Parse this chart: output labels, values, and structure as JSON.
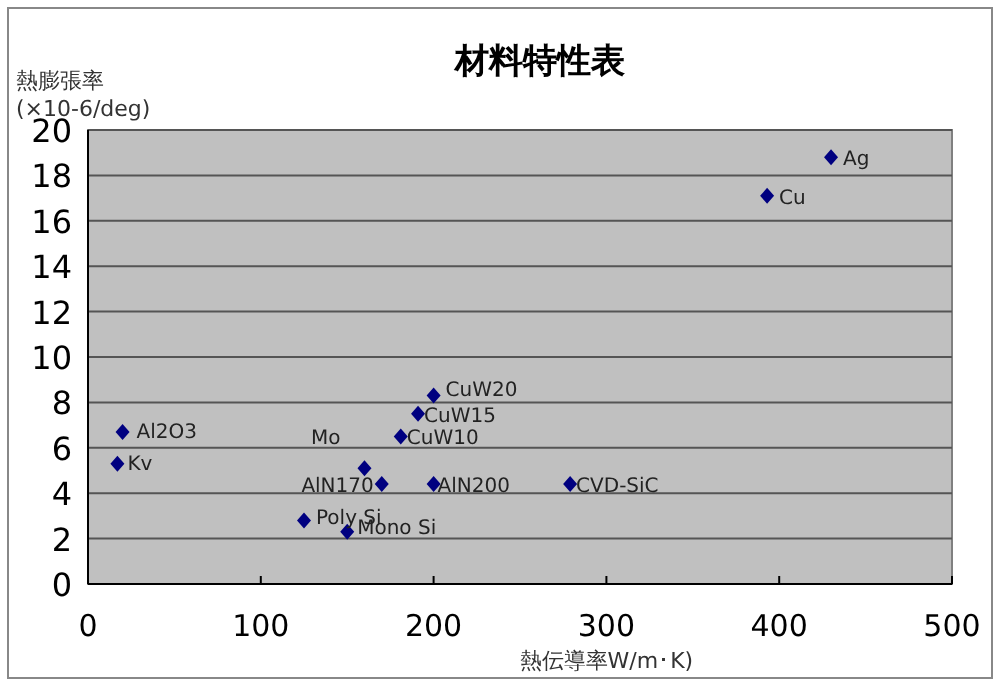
{
  "chart_data": {
    "type": "scatter",
    "title": "材料特性表",
    "xlabel": "熱伝導率W/m･K)",
    "ylabel": "熱膨張率\n(×10-6/deg)",
    "x": [
      430,
      393,
      200,
      191,
      181,
      160,
      170,
      200,
      279,
      20,
      17,
      125,
      150
    ],
    "series": [
      {
        "color": "#000080",
        "values": [
          18.8,
          17.1,
          8.3,
          7.5,
          6.5,
          5.1,
          4.4,
          4.4,
          4.4,
          6.7,
          5.3,
          2.8,
          2.3
        ]
      }
    ],
    "annotations": [
      {
        "text": "Ag",
        "x": 430,
        "y": 18.8
      },
      {
        "text": "Cu",
        "x": 393,
        "y": 17.1
      },
      {
        "text": "CuW20",
        "x": 200,
        "y": 8.3
      },
      {
        "text": "CuW15",
        "x": 191,
        "y": 7.5
      },
      {
        "text": "CuW10",
        "x": 181,
        "y": 6.5
      },
      {
        "text": "Mo",
        "x": 160,
        "y": 5.1
      },
      {
        "text": "AlN170",
        "x": 170,
        "y": 4.4
      },
      {
        "text": "AlN200",
        "x": 200,
        "y": 4.4
      },
      {
        "text": "CVD-SiC",
        "x": 279,
        "y": 4.4
      },
      {
        "text": "Al2O3",
        "x": 20,
        "y": 6.7
      },
      {
        "text": "Kv",
        "x": 17,
        "y": 5.3
      },
      {
        "text": "Poly Si",
        "x": 125,
        "y": 2.8
      },
      {
        "text": "Mono Si",
        "x": 150,
        "y": 2.3
      }
    ],
    "xlim": [
      0,
      500
    ],
    "xticks": [
      0,
      100,
      200,
      300,
      400,
      500
    ],
    "ylim": [
      0,
      20
    ],
    "yticks": [
      0,
      2,
      4,
      6,
      8,
      10,
      12,
      14,
      16,
      18,
      20
    ],
    "grid": "y",
    "marker": "diamond"
  }
}
